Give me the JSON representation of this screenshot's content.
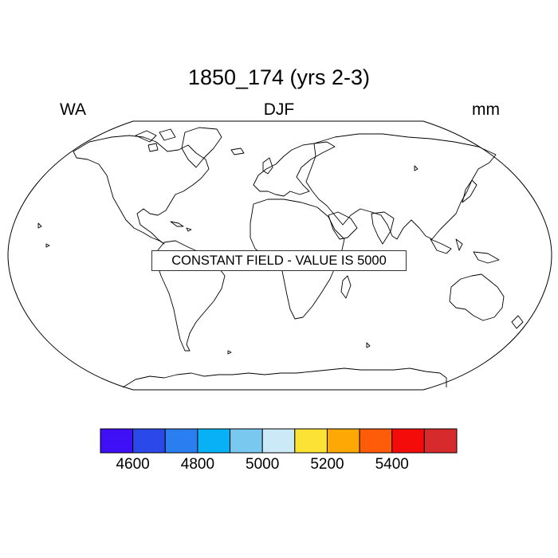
{
  "title": "1850_174 (yrs 2-3)",
  "subtitle_left": "WA",
  "subtitle_center": "DJF",
  "subtitle_right": "mm",
  "annotation": "CONSTANT FIELD - VALUE IS 5000",
  "colorbar": {
    "colors": [
      "#3f10f5",
      "#2b48e8",
      "#2b7ef0",
      "#08b1f5",
      "#78c8ef",
      "#cce9f8",
      "#fde236",
      "#fea806",
      "#fe5c08",
      "#f40c0a",
      "#d62a2c"
    ],
    "boundaries": [
      4500,
      4600,
      4700,
      4800,
      4900,
      5000,
      5100,
      5200,
      5300,
      5400,
      5500,
      5600
    ],
    "tick_labels": [
      {
        "value": 4600,
        "text": "4600"
      },
      {
        "value": 4800,
        "text": "4800"
      },
      {
        "value": 5000,
        "text": "5000"
      },
      {
        "value": 5200,
        "text": "5200"
      },
      {
        "value": 5400,
        "text": "5400"
      }
    ]
  },
  "map": {
    "projection": "robinson",
    "field": "constant",
    "constant_value": 5000
  }
}
